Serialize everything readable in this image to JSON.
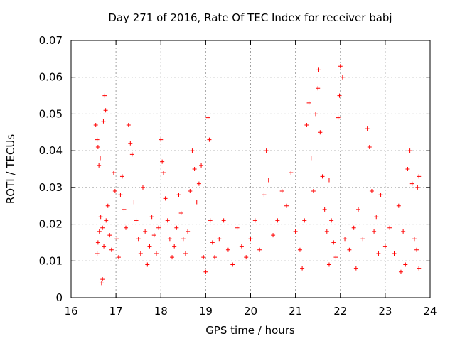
{
  "chart_data": {
    "type": "scatter",
    "title": "Day 271 of 2016, Rate Of TEC Index for receiver babj",
    "xlabel": "GPS time / hours",
    "ylabel": "ROTI / TECUs",
    "xlim": [
      16,
      24
    ],
    "ylim": [
      0,
      0.07
    ],
    "xticks": [
      "16",
      "17",
      "18",
      "19",
      "20",
      "21",
      "22",
      "23",
      "24"
    ],
    "yticks": [
      "0",
      "0.01",
      "0.02",
      "0.03",
      "0.04",
      "0.05",
      "0.06",
      "0.07"
    ],
    "grid": true,
    "marker": "+",
    "color": "#ff0000",
    "series": [
      {
        "name": "ROTI",
        "points": [
          [
            16.55,
            0.047
          ],
          [
            16.58,
            0.043
          ],
          [
            16.6,
            0.041
          ],
          [
            16.62,
            0.036
          ],
          [
            16.65,
            0.038
          ],
          [
            16.68,
            0.004
          ],
          [
            16.7,
            0.005
          ],
          [
            16.72,
            0.048
          ],
          [
            16.75,
            0.055
          ],
          [
            16.77,
            0.051
          ],
          [
            16.58,
            0.012
          ],
          [
            16.6,
            0.015
          ],
          [
            16.63,
            0.018
          ],
          [
            16.66,
            0.022
          ],
          [
            16.7,
            0.019
          ],
          [
            16.73,
            0.014
          ],
          [
            16.78,
            0.021
          ],
          [
            16.82,
            0.025
          ],
          [
            16.86,
            0.017
          ],
          [
            16.9,
            0.013
          ],
          [
            16.95,
            0.034
          ],
          [
            16.98,
            0.029
          ],
          [
            17.02,
            0.016
          ],
          [
            17.06,
            0.011
          ],
          [
            17.1,
            0.028
          ],
          [
            17.14,
            0.033
          ],
          [
            17.18,
            0.024
          ],
          [
            17.22,
            0.019
          ],
          [
            17.28,
            0.047
          ],
          [
            17.32,
            0.042
          ],
          [
            17.36,
            0.039
          ],
          [
            17.4,
            0.026
          ],
          [
            17.45,
            0.021
          ],
          [
            17.5,
            0.016
          ],
          [
            17.55,
            0.012
          ],
          [
            17.6,
            0.03
          ],
          [
            17.65,
            0.018
          ],
          [
            17.7,
            0.009
          ],
          [
            17.75,
            0.014
          ],
          [
            17.8,
            0.022
          ],
          [
            17.85,
            0.017
          ],
          [
            17.9,
            0.012
          ],
          [
            17.95,
            0.019
          ],
          [
            18.0,
            0.043
          ],
          [
            18.03,
            0.037
          ],
          [
            18.06,
            0.034
          ],
          [
            18.1,
            0.027
          ],
          [
            18.15,
            0.021
          ],
          [
            18.2,
            0.016
          ],
          [
            18.25,
            0.011
          ],
          [
            18.3,
            0.014
          ],
          [
            18.35,
            0.019
          ],
          [
            18.4,
            0.028
          ],
          [
            18.45,
            0.023
          ],
          [
            18.5,
            0.016
          ],
          [
            18.55,
            0.012
          ],
          [
            18.6,
            0.018
          ],
          [
            18.65,
            0.029
          ],
          [
            18.7,
            0.04
          ],
          [
            18.75,
            0.035
          ],
          [
            18.8,
            0.026
          ],
          [
            18.85,
            0.031
          ],
          [
            18.9,
            0.036
          ],
          [
            18.95,
            0.011
          ],
          [
            19.0,
            0.007
          ],
          [
            19.05,
            0.049
          ],
          [
            19.08,
            0.043
          ],
          [
            19.1,
            0.021
          ],
          [
            19.15,
            0.015
          ],
          [
            19.2,
            0.011
          ],
          [
            19.3,
            0.016
          ],
          [
            19.4,
            0.021
          ],
          [
            19.5,
            0.013
          ],
          [
            19.6,
            0.009
          ],
          [
            19.7,
            0.019
          ],
          [
            19.8,
            0.014
          ],
          [
            19.9,
            0.011
          ],
          [
            20.0,
            0.016
          ],
          [
            20.1,
            0.021
          ],
          [
            20.2,
            0.013
          ],
          [
            20.3,
            0.028
          ],
          [
            20.35,
            0.04
          ],
          [
            20.4,
            0.032
          ],
          [
            20.5,
            0.017
          ],
          [
            20.6,
            0.021
          ],
          [
            20.7,
            0.029
          ],
          [
            20.8,
            0.025
          ],
          [
            20.9,
            0.034
          ],
          [
            21.0,
            0.018
          ],
          [
            21.1,
            0.013
          ],
          [
            21.15,
            0.008
          ],
          [
            21.2,
            0.021
          ],
          [
            21.25,
            0.047
          ],
          [
            21.3,
            0.053
          ],
          [
            21.35,
            0.038
          ],
          [
            21.4,
            0.029
          ],
          [
            21.45,
            0.05
          ],
          [
            21.5,
            0.057
          ],
          [
            21.52,
            0.062
          ],
          [
            21.55,
            0.045
          ],
          [
            21.6,
            0.033
          ],
          [
            21.65,
            0.024
          ],
          [
            21.7,
            0.018
          ],
          [
            21.75,
            0.032
          ],
          [
            21.8,
            0.021
          ],
          [
            21.85,
            0.015
          ],
          [
            21.9,
            0.011
          ],
          [
            21.95,
            0.049
          ],
          [
            21.98,
            0.055
          ],
          [
            22.0,
            0.063
          ],
          [
            22.05,
            0.06
          ],
          [
            22.1,
            0.016
          ],
          [
            22.2,
            0.013
          ],
          [
            22.3,
            0.019
          ],
          [
            22.4,
            0.024
          ],
          [
            22.5,
            0.016
          ],
          [
            22.6,
            0.046
          ],
          [
            22.65,
            0.041
          ],
          [
            22.7,
            0.029
          ],
          [
            22.75,
            0.018
          ],
          [
            22.8,
            0.022
          ],
          [
            22.9,
            0.028
          ],
          [
            23.0,
            0.014
          ],
          [
            23.1,
            0.019
          ],
          [
            23.2,
            0.012
          ],
          [
            23.3,
            0.025
          ],
          [
            23.4,
            0.018
          ],
          [
            23.5,
            0.035
          ],
          [
            23.55,
            0.04
          ],
          [
            23.6,
            0.031
          ],
          [
            23.65,
            0.016
          ],
          [
            23.7,
            0.013
          ],
          [
            23.75,
            0.008
          ],
          [
            23.75,
            0.033
          ],
          [
            23.72,
            0.03
          ],
          [
            23.45,
            0.009
          ],
          [
            23.35,
            0.007
          ],
          [
            22.85,
            0.012
          ],
          [
            22.35,
            0.008
          ],
          [
            21.75,
            0.009
          ]
        ]
      }
    ]
  }
}
